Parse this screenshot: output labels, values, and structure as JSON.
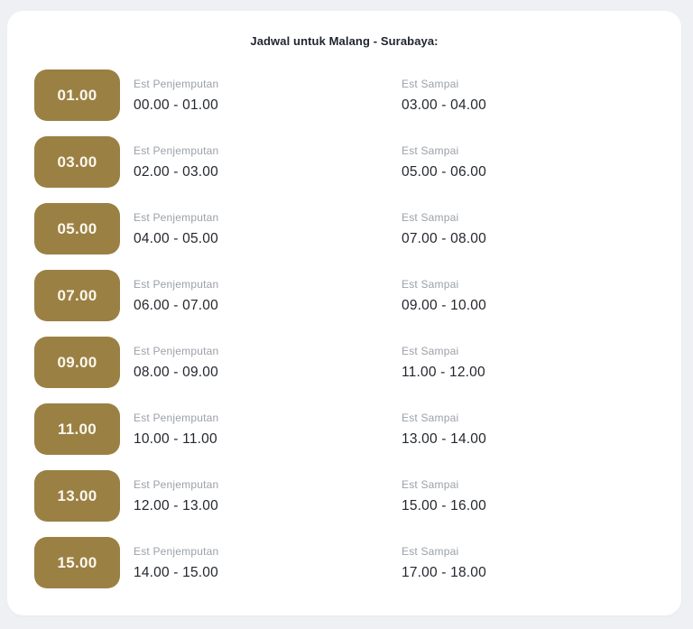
{
  "page": {
    "title": "Jadwal untuk Malang - Surabaya:"
  },
  "labels": {
    "pickup": "Est Penjemputan",
    "arrival": "Est Sampai"
  },
  "colors": {
    "page_background": "#eef0f3",
    "card_background": "#ffffff",
    "badge_background": "#9b8044",
    "badge_text": "#fbf7ee",
    "label_text": "#9ba1a8",
    "time_text": "#23272e",
    "title_text": "#1f242e"
  },
  "schedule": {
    "rows": [
      {
        "time": "01.00",
        "pickup": "00.00 - 01.00",
        "arrival": "03.00 - 04.00"
      },
      {
        "time": "03.00",
        "pickup": "02.00 - 03.00",
        "arrival": "05.00 - 06.00"
      },
      {
        "time": "05.00",
        "pickup": "04.00 - 05.00",
        "arrival": "07.00 - 08.00"
      },
      {
        "time": "07.00",
        "pickup": "06.00 - 07.00",
        "arrival": "09.00 - 10.00"
      },
      {
        "time": "09.00",
        "pickup": "08.00 - 09.00",
        "arrival": "11.00 - 12.00"
      },
      {
        "time": "11.00",
        "pickup": "10.00 - 11.00",
        "arrival": "13.00 - 14.00"
      },
      {
        "time": "13.00",
        "pickup": "12.00 - 13.00",
        "arrival": "15.00 - 16.00"
      },
      {
        "time": "15.00",
        "pickup": "14.00 - 15.00",
        "arrival": "17.00 - 18.00"
      }
    ]
  }
}
